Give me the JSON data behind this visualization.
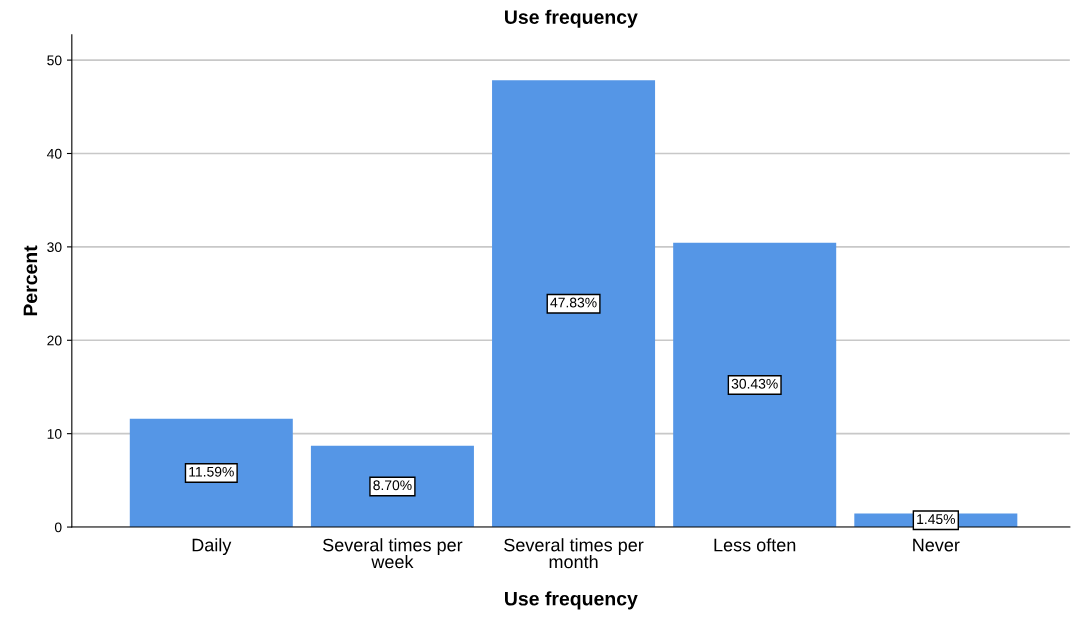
{
  "chart_data": {
    "type": "bar",
    "title": "Use frequency",
    "xlabel": "Use frequency",
    "ylabel": "Percent",
    "categories": [
      "Daily",
      "Several times per\nweek",
      "Several times per\nmonth",
      "Less often",
      "Never"
    ],
    "values": [
      11.59,
      8.7,
      47.83,
      30.43,
      1.45
    ],
    "value_labels": [
      "11.59%",
      "8.70%",
      "47.83%",
      "30.43%",
      "1.45%"
    ],
    "color": "#5596e6",
    "ylim": [
      0,
      52.7
    ],
    "yticks": [
      0,
      10,
      20,
      30,
      40,
      50
    ],
    "grid": "y"
  }
}
